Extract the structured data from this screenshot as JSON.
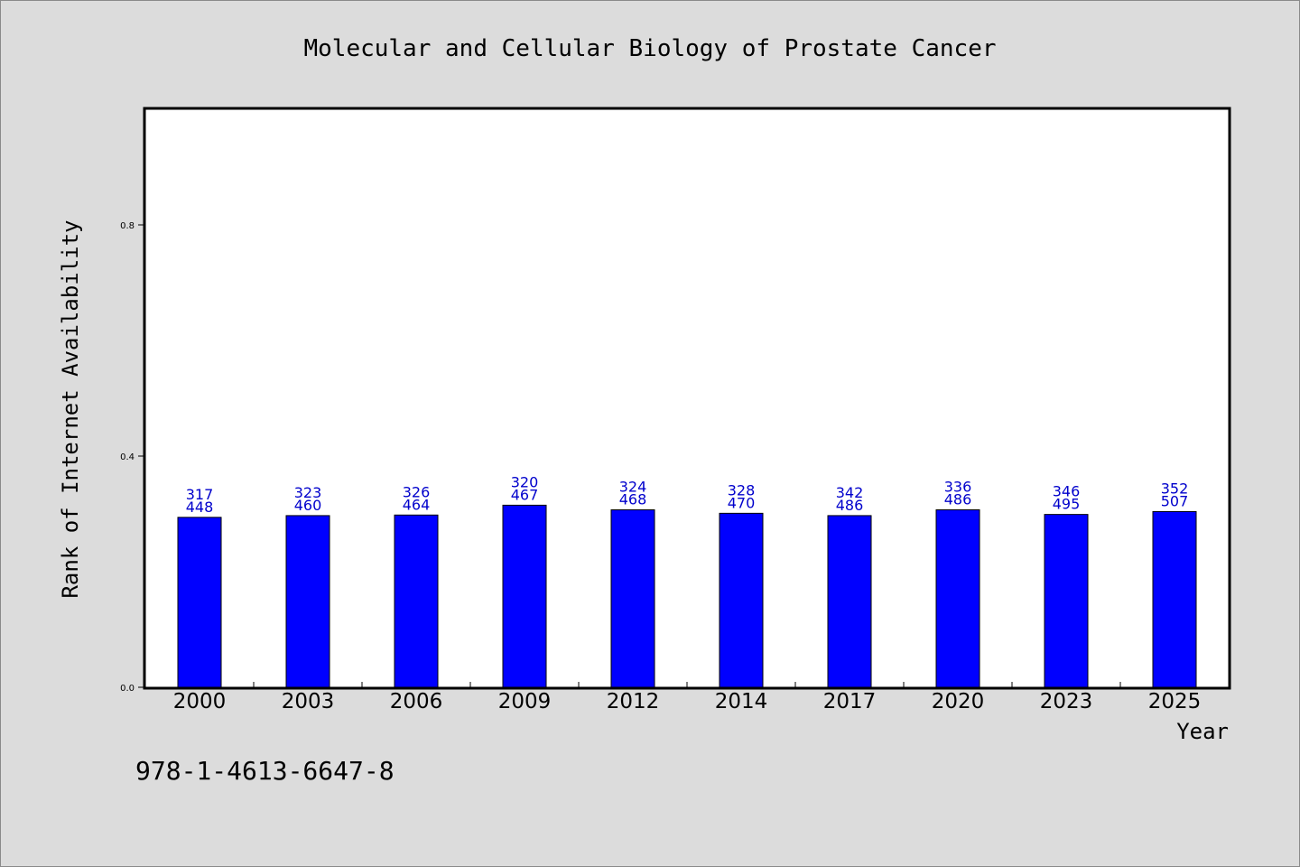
{
  "colors": {
    "background": "#dcdcdc",
    "plot_background": "#ffffff",
    "bar_fill": "#0000ff",
    "label_color": "#0000cc"
  },
  "isbn": "978-1-4613-6647-8",
  "chart_data": {
    "type": "bar",
    "title": "Molecular and Cellular Biology of Prostate Cancer",
    "xlabel": "Year",
    "ylabel": "Rank of Internet Availability",
    "ylim": [
      0,
      1
    ],
    "yticks": [
      "0.0",
      "0.4",
      "0.8"
    ],
    "yticks_values": [
      0,
      0.4,
      0.8
    ],
    "grid": false,
    "categories": [
      "2000",
      "2003",
      "2006",
      "2009",
      "2012",
      "2014",
      "2017",
      "2020",
      "2023",
      "2025"
    ],
    "values": [
      0.294,
      0.297,
      0.298,
      0.315,
      0.307,
      0.301,
      0.297,
      0.307,
      0.299,
      0.304
    ],
    "labels_top": [
      "317",
      "323",
      "326",
      "320",
      "324",
      "328",
      "342",
      "336",
      "346",
      "352"
    ],
    "labels_bottom": [
      "448",
      "460",
      "464",
      "467",
      "468",
      "470",
      "486",
      "486",
      "495",
      "507"
    ]
  }
}
